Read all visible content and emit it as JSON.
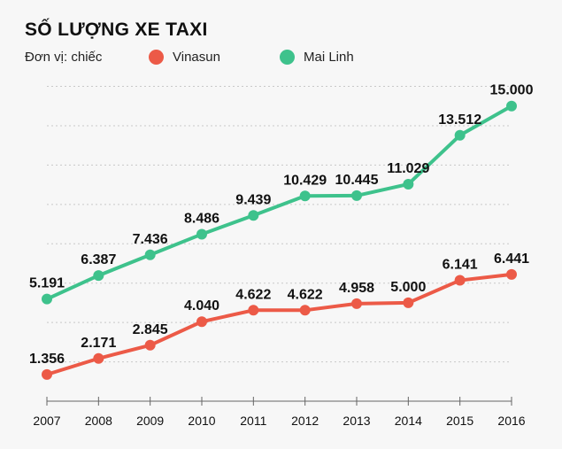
{
  "chart_data": {
    "type": "line",
    "title": "SỐ LƯỢNG XE TAXI",
    "subtitle": "Đơn vị: chiếc",
    "x": [
      "2007",
      "2008",
      "2009",
      "2010",
      "2011",
      "2012",
      "2013",
      "2014",
      "2015",
      "2016"
    ],
    "series": [
      {
        "name": "Vinasun",
        "color": "#ec5a47",
        "values": [
          1356,
          2171,
          2845,
          4040,
          4622,
          4622,
          4958,
          5000,
          6141,
          6441
        ],
        "labels": [
          "1.356",
          "2.171",
          "2.845",
          "4.040",
          "4.622",
          "4.622",
          "4.958",
          "5.000",
          "6.141",
          "6.441"
        ]
      },
      {
        "name": "Mai Linh",
        "color": "#3ec28c",
        "values": [
          5191,
          6387,
          7436,
          8486,
          9439,
          10429,
          10445,
          11029,
          13512,
          15000
        ],
        "labels": [
          "5.191",
          "6.387",
          "7.436",
          "8.486",
          "9.439",
          "10.429",
          "10.445",
          "11.029",
          "13.512",
          "15.000"
        ]
      }
    ],
    "ylim": [
      0,
      16000
    ],
    "grid": true,
    "grid_step": 2000,
    "legend_position": "top"
  }
}
